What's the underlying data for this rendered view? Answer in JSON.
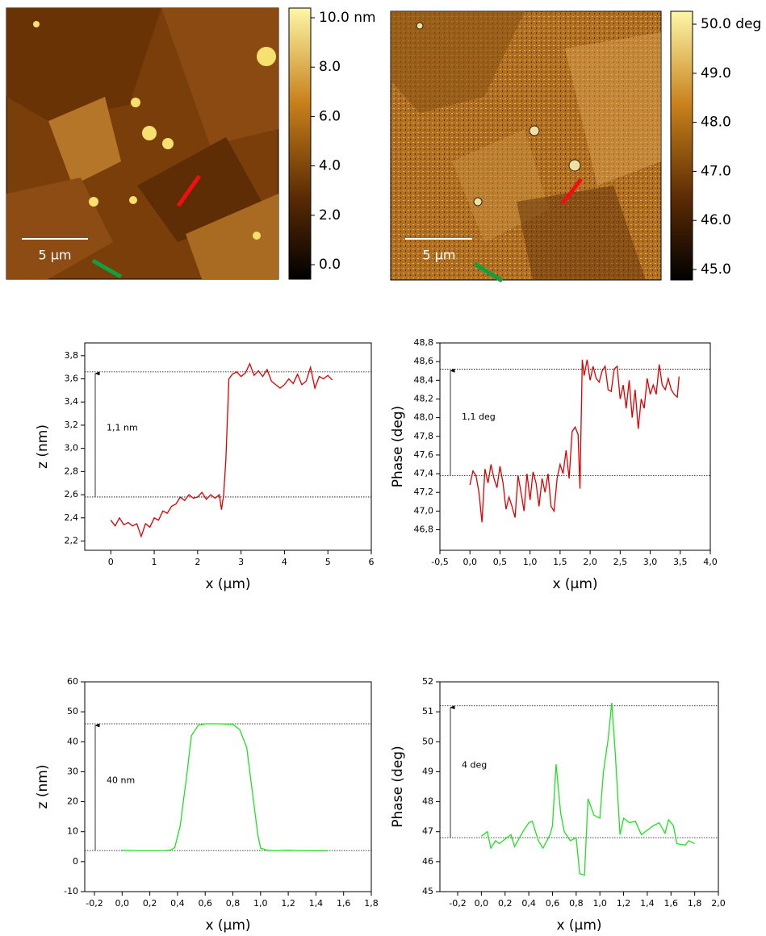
{
  "images": [
    {
      "scale_bar": "5 µm",
      "colorbar": {
        "lim": [
          0,
          10
        ],
        "ticks": [
          {
            "value": 10,
            "label": "10.0 nm"
          },
          {
            "value": 8,
            "label": "8.0"
          },
          {
            "value": 6,
            "label": "6.0"
          },
          {
            "value": 4,
            "label": "4.0"
          },
          {
            "value": 2,
            "label": "2.0"
          },
          {
            "value": 0,
            "label": "0.0"
          }
        ]
      }
    },
    {
      "scale_bar": "5 µm",
      "colorbar": {
        "lim": [
          45,
          50
        ],
        "ticks": [
          {
            "value": 50,
            "label": "50.0 deg"
          },
          {
            "value": 49,
            "label": "49.0"
          },
          {
            "value": 48,
            "label": "48.0"
          },
          {
            "value": 47,
            "label": "47.0"
          },
          {
            "value": 46,
            "label": "46.0"
          },
          {
            "value": 45,
            "label": "45.0"
          }
        ]
      }
    }
  ],
  "chart_data": [
    {
      "type": "line",
      "x_label": "x (µm)",
      "y_label": "z (nm)",
      "annotation": "1,1 nm",
      "xlim": [
        -0.6,
        6
      ],
      "xticks": [
        0,
        1,
        2,
        3,
        4,
        5,
        6
      ],
      "ylim": [
        2.12,
        3.91
      ],
      "yticks": [
        {
          "value": 2.2,
          "label": "2,2"
        },
        {
          "value": 2.4,
          "label": "2,4"
        },
        {
          "value": 2.6,
          "label": "2,6"
        },
        {
          "value": 2.8,
          "label": "2,8"
        },
        {
          "value": 3.0,
          "label": "3,0"
        },
        {
          "value": 3.2,
          "label": "3,2"
        },
        {
          "value": 3.4,
          "label": "3,4"
        },
        {
          "value": 3.6,
          "label": "3,6"
        },
        {
          "value": 3.8,
          "label": "3,8"
        }
      ],
      "reference_lines": [
        3.66,
        2.58
      ],
      "series": [
        {
          "color": "#e00000",
          "x": [
            0,
            0.1,
            0.2,
            0.3,
            0.4,
            0.5,
            0.6,
            0.7,
            0.8,
            0.9,
            1.0,
            1.1,
            1.2,
            1.3,
            1.4,
            1.5,
            1.6,
            1.7,
            1.8,
            1.9,
            2.0,
            2.1,
            2.2,
            2.3,
            2.4,
            2.5,
            2.55,
            2.6,
            2.65,
            2.72,
            2.8,
            2.9,
            3.0,
            3.1,
            3.2,
            3.3,
            3.4,
            3.5,
            3.6,
            3.7,
            3.8,
            3.9,
            4.0,
            4.1,
            4.2,
            4.3,
            4.4,
            4.5,
            4.6,
            4.7,
            4.8,
            4.9,
            5.0,
            5.1
          ],
          "values": [
            2.38,
            2.33,
            2.4,
            2.34,
            2.36,
            2.33,
            2.35,
            2.24,
            2.35,
            2.32,
            2.4,
            2.38,
            2.46,
            2.44,
            2.5,
            2.52,
            2.58,
            2.55,
            2.6,
            2.57,
            2.58,
            2.62,
            2.56,
            2.6,
            2.57,
            2.6,
            2.47,
            2.6,
            2.9,
            3.6,
            3.64,
            3.66,
            3.62,
            3.65,
            3.73,
            3.63,
            3.67,
            3.62,
            3.68,
            3.58,
            3.55,
            3.52,
            3.55,
            3.6,
            3.56,
            3.64,
            3.55,
            3.58,
            3.7,
            3.52,
            3.62,
            3.6,
            3.63,
            3.59
          ]
        }
      ]
    },
    {
      "type": "line",
      "x_label": "x (µm)",
      "y_label": "Phase (deg)",
      "annotation": "1,1 deg",
      "xlim": [
        -0.5,
        4.0
      ],
      "xticks": [
        {
          "value": -0.5,
          "label": "-0,5"
        },
        {
          "value": 0,
          "label": "0,0"
        },
        {
          "value": 0.5,
          "label": "0,5"
        },
        {
          "value": 1.0,
          "label": "1,0"
        },
        {
          "value": 1.5,
          "label": "1,5"
        },
        {
          "value": 2.0,
          "label": "2,0"
        },
        {
          "value": 2.5,
          "label": "2,5"
        },
        {
          "value": 3.0,
          "label": "3,0"
        },
        {
          "value": 3.5,
          "label": "3,5"
        },
        {
          "value": 4.0,
          "label": "4,0"
        }
      ],
      "ylim": [
        46.58,
        48.8
      ],
      "yticks": [
        {
          "value": 46.8,
          "label": "46,8"
        },
        {
          "value": 47.0,
          "label": "47,0"
        },
        {
          "value": 47.2,
          "label": "47,2"
        },
        {
          "value": 47.4,
          "label": "47,4"
        },
        {
          "value": 47.6,
          "label": "47,6"
        },
        {
          "value": 47.8,
          "label": "47,8"
        },
        {
          "value": 48.0,
          "label": "48,0"
        },
        {
          "value": 48.2,
          "label": "48,2"
        },
        {
          "value": 48.4,
          "label": "48,4"
        },
        {
          "value": 48.6,
          "label": "48,6"
        },
        {
          "value": 48.8,
          "label": "48,8"
        }
      ],
      "reference_lines": [
        48.52,
        47.38
      ],
      "series": [
        {
          "color": "#e00000",
          "x": [
            0,
            0.05,
            0.1,
            0.15,
            0.2,
            0.25,
            0.3,
            0.35,
            0.4,
            0.45,
            0.5,
            0.55,
            0.6,
            0.65,
            0.7,
            0.75,
            0.8,
            0.85,
            0.9,
            0.95,
            1.0,
            1.05,
            1.1,
            1.15,
            1.2,
            1.25,
            1.3,
            1.35,
            1.4,
            1.45,
            1.5,
            1.55,
            1.6,
            1.65,
            1.7,
            1.75,
            1.8,
            1.83,
            1.87,
            1.9,
            1.95,
            2.0,
            2.05,
            2.1,
            2.15,
            2.2,
            2.25,
            2.3,
            2.35,
            2.4,
            2.45,
            2.5,
            2.55,
            2.6,
            2.65,
            2.7,
            2.75,
            2.8,
            2.85,
            2.9,
            2.95,
            3.0,
            3.05,
            3.1,
            3.15,
            3.2,
            3.25,
            3.3,
            3.35,
            3.4,
            3.45,
            3.48
          ],
          "values": [
            47.28,
            47.43,
            47.38,
            47.2,
            46.88,
            47.45,
            47.3,
            47.5,
            47.35,
            47.25,
            47.48,
            47.3,
            47.02,
            47.15,
            47.05,
            46.93,
            47.38,
            47.2,
            47.0,
            47.4,
            47.12,
            47.42,
            47.3,
            47.05,
            47.35,
            47.2,
            47.4,
            47.05,
            47.0,
            47.35,
            47.5,
            47.4,
            47.65,
            47.35,
            47.85,
            47.9,
            47.82,
            47.24,
            48.62,
            48.45,
            48.62,
            48.4,
            48.55,
            48.42,
            48.38,
            48.5,
            48.55,
            48.3,
            48.28,
            48.52,
            48.55,
            48.2,
            48.35,
            48.1,
            48.4,
            48.0,
            48.3,
            47.88,
            48.2,
            48.1,
            48.42,
            48.25,
            48.35,
            48.25,
            48.57,
            48.35,
            48.3,
            48.42,
            48.3,
            48.25,
            48.22,
            48.44
          ]
        }
      ]
    },
    {
      "type": "line",
      "x_label": "x (µm)",
      "y_label": "z (nm)",
      "annotation": "40 nm",
      "xlim": [
        -0.27,
        1.8
      ],
      "xticks": [
        {
          "value": -0.2,
          "label": "-0,2"
        },
        {
          "value": 0,
          "label": "0,0"
        },
        {
          "value": 0.2,
          "label": "0,2"
        },
        {
          "value": 0.4,
          "label": "0,4"
        },
        {
          "value": 0.6,
          "label": "0,6"
        },
        {
          "value": 0.8,
          "label": "0,8"
        },
        {
          "value": 1.0,
          "label": "1,0"
        },
        {
          "value": 1.2,
          "label": "1,2"
        },
        {
          "value": 1.4,
          "label": "1,4"
        },
        {
          "value": 1.6,
          "label": "1,6"
        },
        {
          "value": 1.8,
          "label": "1,8"
        }
      ],
      "ylim": [
        -10,
        60
      ],
      "yticks": [
        -10,
        0,
        10,
        20,
        30,
        40,
        50,
        60
      ],
      "reference_lines": [
        46,
        3.7
      ],
      "series": [
        {
          "color": "#22e022",
          "x": [
            0,
            0.1,
            0.2,
            0.3,
            0.35,
            0.38,
            0.42,
            0.47,
            0.5,
            0.55,
            0.6,
            0.7,
            0.8,
            0.85,
            0.9,
            0.95,
            0.98,
            1.0,
            1.05,
            1.1,
            1.2,
            1.3,
            1.4,
            1.48
          ],
          "values": [
            3.8,
            3.7,
            3.7,
            3.7,
            3.9,
            4.7,
            12,
            30,
            42,
            45.5,
            46,
            46,
            45.8,
            44,
            38,
            20,
            9,
            4.5,
            3.8,
            3.7,
            3.8,
            3.7,
            3.6,
            3.6
          ]
        }
      ]
    },
    {
      "type": "line",
      "x_label": "x (µm)",
      "y_label": "Phase (deg)",
      "annotation": "4 deg",
      "xlim": [
        -0.35,
        2.0
      ],
      "xticks": [
        {
          "value": -0.2,
          "label": "-0,2"
        },
        {
          "value": 0,
          "label": "0,0"
        },
        {
          "value": 0.2,
          "label": "0,2"
        },
        {
          "value": 0.4,
          "label": "0,4"
        },
        {
          "value": 0.6,
          "label": "0,6"
        },
        {
          "value": 0.8,
          "label": "0,8"
        },
        {
          "value": 1.0,
          "label": "1,0"
        },
        {
          "value": 1.2,
          "label": "1,2"
        },
        {
          "value": 1.4,
          "label": "1,4"
        },
        {
          "value": 1.6,
          "label": "1,6"
        },
        {
          "value": 1.8,
          "label": "1,8"
        },
        {
          "value": 2.0,
          "label": "2,0"
        }
      ],
      "ylim": [
        45,
        52
      ],
      "yticks": [
        45,
        46,
        47,
        48,
        49,
        50,
        51,
        52
      ],
      "reference_lines": [
        51.2,
        46.8
      ],
      "series": [
        {
          "color": "#22e022",
          "x": [
            0,
            0.05,
            0.08,
            0.12,
            0.15,
            0.2,
            0.25,
            0.28,
            0.35,
            0.4,
            0.43,
            0.48,
            0.52,
            0.58,
            0.6,
            0.63,
            0.67,
            0.7,
            0.75,
            0.8,
            0.83,
            0.87,
            0.9,
            0.95,
            1.0,
            1.03,
            1.07,
            1.1,
            1.13,
            1.17,
            1.2,
            1.25,
            1.3,
            1.35,
            1.45,
            1.5,
            1.55,
            1.58,
            1.62,
            1.65,
            1.72,
            1.75,
            1.8
          ],
          "values": [
            46.85,
            47.0,
            46.45,
            46.7,
            46.6,
            46.75,
            46.9,
            46.5,
            47.0,
            47.3,
            47.35,
            46.7,
            46.45,
            46.9,
            47.2,
            49.25,
            47.6,
            47.0,
            46.7,
            46.8,
            45.6,
            45.55,
            48.1,
            47.55,
            47.45,
            49.0,
            50.1,
            51.3,
            49.6,
            46.9,
            47.45,
            47.3,
            47.35,
            46.9,
            47.2,
            47.3,
            46.95,
            47.4,
            47.2,
            46.6,
            46.55,
            46.7,
            46.6
          ]
        }
      ]
    }
  ]
}
